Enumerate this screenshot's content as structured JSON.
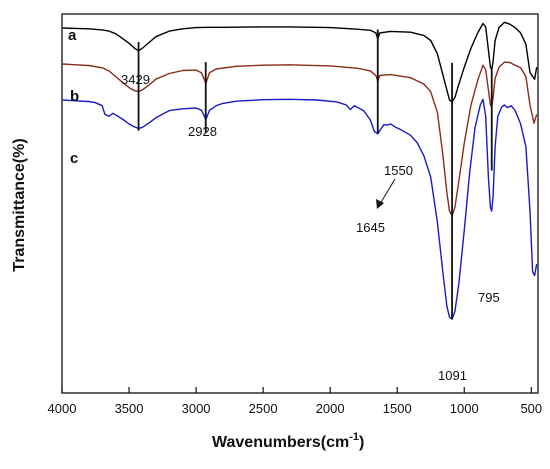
{
  "chart_data": {
    "type": "line",
    "xlabel": "Wavenumbers(cm",
    "xlabel_sup": "-1",
    "xlabel_close": ")",
    "ylabel": "Transmittance(%)",
    "xlim": [
      4000,
      450
    ],
    "x_reversed": true,
    "xticks": [
      4000,
      3500,
      3000,
      2500,
      2000,
      1500,
      1000,
      500
    ],
    "xtick_labels": [
      "4000",
      "3500",
      "3000",
      "2500",
      "2000",
      "1500",
      "1000",
      "500"
    ],
    "ylim": [
      0,
      100
    ],
    "yticks_shown": false,
    "grid": false,
    "series": [
      {
        "name": "a",
        "color": "#000000",
        "points": [
          [
            3995,
            96.3
          ],
          [
            3900,
            96.2
          ],
          [
            3800,
            96.1
          ],
          [
            3700,
            95.8
          ],
          [
            3650,
            95.5
          ],
          [
            3600,
            94.8
          ],
          [
            3550,
            93.6
          ],
          [
            3500,
            92.3
          ],
          [
            3460,
            91.0
          ],
          [
            3429,
            90.3
          ],
          [
            3400,
            91.0
          ],
          [
            3350,
            92.5
          ],
          [
            3300,
            94.0
          ],
          [
            3200,
            95.5
          ],
          [
            3100,
            96.1
          ],
          [
            3000,
            96.4
          ],
          [
            2900,
            96.5
          ],
          [
            2800,
            96.5
          ],
          [
            2500,
            96.6
          ],
          [
            2300,
            96.6
          ],
          [
            2000,
            96.4
          ],
          [
            1800,
            96.0
          ],
          [
            1700,
            95.7
          ],
          [
            1660,
            95.0
          ],
          [
            1645,
            93.5
          ],
          [
            1630,
            95.0
          ],
          [
            1550,
            95.4
          ],
          [
            1400,
            95.2
          ],
          [
            1300,
            94.3
          ],
          [
            1250,
            93.0
          ],
          [
            1200,
            89.5
          ],
          [
            1160,
            84.0
          ],
          [
            1130,
            80.0
          ],
          [
            1110,
            77.3
          ],
          [
            1091,
            76.8
          ],
          [
            1070,
            78.0
          ],
          [
            1040,
            81.5
          ],
          [
            1000,
            86.0
          ],
          [
            950,
            91.0
          ],
          [
            900,
            95.0
          ],
          [
            860,
            97.5
          ],
          [
            840,
            96.6
          ],
          [
            820,
            90.5
          ],
          [
            805,
            86.0
          ],
          [
            795,
            85.2
          ],
          [
            785,
            87.5
          ],
          [
            770,
            93.0
          ],
          [
            740,
            96.5
          ],
          [
            700,
            97.8
          ],
          [
            660,
            97.3
          ],
          [
            620,
            96.4
          ],
          [
            580,
            95.0
          ],
          [
            540,
            92.0
          ],
          [
            510,
            84.5
          ],
          [
            475,
            82.8
          ],
          [
            460,
            86.0
          ]
        ]
      },
      {
        "name": "b",
        "color": "#8a2b1c",
        "points": [
          [
            3995,
            86.8
          ],
          [
            3900,
            86.6
          ],
          [
            3800,
            86.4
          ],
          [
            3700,
            85.8
          ],
          [
            3650,
            85.0
          ],
          [
            3600,
            83.5
          ],
          [
            3550,
            82.0
          ],
          [
            3500,
            80.6
          ],
          [
            3460,
            79.8
          ],
          [
            3429,
            79.5
          ],
          [
            3400,
            80.0
          ],
          [
            3350,
            81.3
          ],
          [
            3300,
            82.8
          ],
          [
            3200,
            84.3
          ],
          [
            3100,
            85.1
          ],
          [
            3000,
            85.2
          ],
          [
            2960,
            84.5
          ],
          [
            2935,
            82.4
          ],
          [
            2928,
            81.6
          ],
          [
            2920,
            82.4
          ],
          [
            2900,
            84.5
          ],
          [
            2850,
            85.5
          ],
          [
            2700,
            86.2
          ],
          [
            2500,
            86.5
          ],
          [
            2300,
            86.6
          ],
          [
            2000,
            86.3
          ],
          [
            1800,
            85.7
          ],
          [
            1700,
            85.0
          ],
          [
            1660,
            83.8
          ],
          [
            1645,
            82.3
          ],
          [
            1630,
            83.8
          ],
          [
            1550,
            84.0
          ],
          [
            1400,
            83.2
          ],
          [
            1300,
            81.5
          ],
          [
            1250,
            79.5
          ],
          [
            1200,
            74.0
          ],
          [
            1160,
            63.0
          ],
          [
            1130,
            53.0
          ],
          [
            1110,
            48.0
          ],
          [
            1091,
            46.8
          ],
          [
            1070,
            49.0
          ],
          [
            1040,
            56.0
          ],
          [
            1000,
            66.0
          ],
          [
            950,
            76.0
          ],
          [
            900,
            82.5
          ],
          [
            860,
            86.5
          ],
          [
            840,
            85.3
          ],
          [
            820,
            80.0
          ],
          [
            805,
            76.0
          ],
          [
            795,
            75.5
          ],
          [
            785,
            78.0
          ],
          [
            770,
            83.0
          ],
          [
            740,
            86.0
          ],
          [
            700,
            87.3
          ],
          [
            660,
            87.2
          ],
          [
            620,
            86.5
          ],
          [
            580,
            85.8
          ],
          [
            540,
            83.5
          ],
          [
            510,
            76.0
          ],
          [
            480,
            71.2
          ],
          [
            460,
            73.5
          ]
        ]
      },
      {
        "name": "c",
        "color": "#1a1ac8",
        "points": [
          [
            3995,
            77.3
          ],
          [
            3900,
            77.1
          ],
          [
            3800,
            76.9
          ],
          [
            3750,
            76.6
          ],
          [
            3700,
            75.8
          ],
          [
            3680,
            73.5
          ],
          [
            3650,
            73.0
          ],
          [
            3620,
            73.8
          ],
          [
            3600,
            73.4
          ],
          [
            3550,
            72.3
          ],
          [
            3500,
            71.0
          ],
          [
            3460,
            70.2
          ],
          [
            3429,
            69.8
          ],
          [
            3400,
            70.1
          ],
          [
            3350,
            71.3
          ],
          [
            3300,
            72.6
          ],
          [
            3200,
            74.5
          ],
          [
            3100,
            75.0
          ],
          [
            3000,
            75.2
          ],
          [
            2960,
            74.6
          ],
          [
            2935,
            72.8
          ],
          [
            2928,
            72.0
          ],
          [
            2920,
            72.8
          ],
          [
            2900,
            74.6
          ],
          [
            2850,
            75.8
          ],
          [
            2800,
            76.4
          ],
          [
            2700,
            77.0
          ],
          [
            2500,
            77.4
          ],
          [
            2300,
            77.5
          ],
          [
            2100,
            77.3
          ],
          [
            1950,
            76.8
          ],
          [
            1880,
            76.0
          ],
          [
            1850,
            74.8
          ],
          [
            1820,
            75.8
          ],
          [
            1750,
            74.5
          ],
          [
            1700,
            72.0
          ],
          [
            1670,
            69.0
          ],
          [
            1645,
            68.4
          ],
          [
            1625,
            69.5
          ],
          [
            1600,
            70.8
          ],
          [
            1570,
            70.7
          ],
          [
            1550,
            71.0
          ],
          [
            1520,
            70.3
          ],
          [
            1480,
            69.6
          ],
          [
            1400,
            68.0
          ],
          [
            1350,
            66.0
          ],
          [
            1300,
            62.5
          ],
          [
            1250,
            57.0
          ],
          [
            1200,
            45.0
          ],
          [
            1160,
            32.0
          ],
          [
            1130,
            23.0
          ],
          [
            1110,
            20.0
          ],
          [
            1091,
            19.5
          ],
          [
            1070,
            21.5
          ],
          [
            1040,
            29.0
          ],
          [
            1000,
            43.0
          ],
          [
            960,
            58.0
          ],
          [
            920,
            70.0
          ],
          [
            880,
            76.0
          ],
          [
            860,
            77.5
          ],
          [
            840,
            73.0
          ],
          [
            820,
            57.0
          ],
          [
            805,
            49.0
          ],
          [
            795,
            48.0
          ],
          [
            785,
            52.0
          ],
          [
            770,
            65.0
          ],
          [
            750,
            73.0
          ],
          [
            720,
            75.5
          ],
          [
            700,
            76.0
          ],
          [
            680,
            75.3
          ],
          [
            650,
            75.8
          ],
          [
            620,
            74.5
          ],
          [
            580,
            71.0
          ],
          [
            540,
            65.0
          ],
          [
            510,
            48.0
          ],
          [
            490,
            32.0
          ],
          [
            475,
            31.0
          ],
          [
            460,
            34.0
          ]
        ]
      }
    ],
    "annotations": [
      {
        "text": "3429",
        "x": 3429
      },
      {
        "text": "2928",
        "x": 2928
      },
      {
        "text": "1645",
        "x": 1645
      },
      {
        "text": "1550",
        "x": 1550
      },
      {
        "text": "1091",
        "x": 1091
      },
      {
        "text": "795",
        "x": 795
      }
    ],
    "reference_lines": [
      {
        "x": 3429,
        "from_y": 92.6,
        "to_y": 69.2
      },
      {
        "x": 2928,
        "from_y": 87.3,
        "to_y": 68.6
      },
      {
        "x": 1645,
        "from_y": 95.9,
        "to_y": 68.4
      },
      {
        "x": 1091,
        "from_y": 87.1,
        "to_y": 19.5
      },
      {
        "x": 795,
        "from_y": 85.2,
        "to_y": 58.7
      }
    ]
  }
}
